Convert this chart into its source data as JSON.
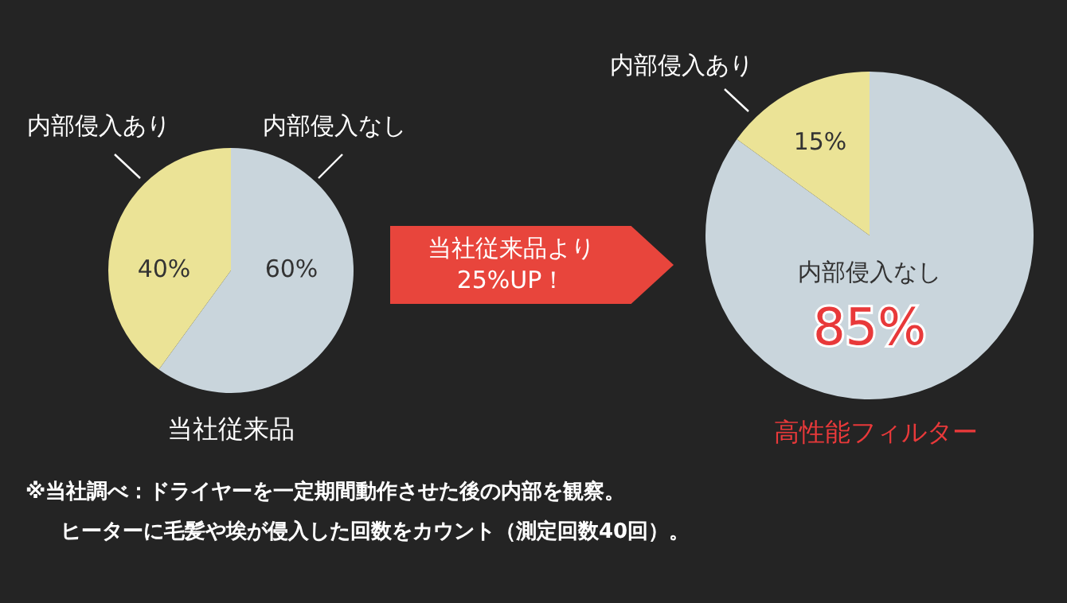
{
  "chart_data": [
    {
      "type": "pie",
      "title": "当社従来品",
      "categories": [
        "内部侵入なし",
        "内部侵入あり"
      ],
      "values": [
        60,
        40
      ],
      "colors": [
        "#c9d5dc",
        "#ebe396"
      ],
      "value_labels": [
        "60%",
        "40%"
      ],
      "legend": false,
      "annotations": [
        "※当社調べ：ドライヤーを一定期間動作させた後の内部を観察。",
        "ヒーターに毛髪や埃が侵入した回数をカウント（測定回数40回）。"
      ]
    },
    {
      "type": "pie",
      "title": "高性能フィルター",
      "categories": [
        "内部侵入なし",
        "内部侵入あり"
      ],
      "values": [
        85,
        15
      ],
      "colors": [
        "#c9d5dc",
        "#ebe396"
      ],
      "value_labels": [
        "85%",
        "15%"
      ],
      "legend": false,
      "annotations": [
        "当社従来品より",
        "25%UP！"
      ]
    }
  ]
}
